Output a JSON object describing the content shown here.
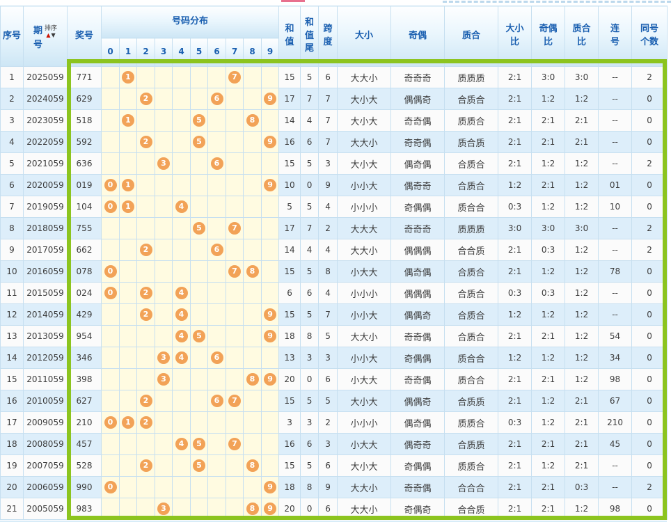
{
  "header": {
    "serial": "序号",
    "period": "期号",
    "sort_label": "排序",
    "prize": "奖号",
    "distribution": "号码分布",
    "digits": [
      "0",
      "1",
      "2",
      "3",
      "4",
      "5",
      "6",
      "7",
      "8",
      "9"
    ],
    "sum": "和值",
    "sum_tail": "和值尾",
    "span": "跨度",
    "size": "大小",
    "parity": "奇偶",
    "prime": "质合",
    "size_ratio": [
      "大小",
      "比"
    ],
    "parity_ratio": [
      "奇偶",
      "比"
    ],
    "prime_ratio": [
      "质合",
      "比"
    ],
    "consecutive": [
      "连",
      "号"
    ],
    "same_count": [
      "同号",
      "个数"
    ]
  },
  "icons": {
    "sort_up": "▲",
    "sort_down": "▼"
  },
  "colors": {
    "accent_green": "#8cc41f",
    "ball_orange": "#f2a257",
    "header_blue": "#1a5fb0",
    "row_alt_blue": "#ddeefa",
    "dist_yellow": "#fffbe1",
    "grid_blue": "#c6dff0",
    "sort_up_red": "#cc1100",
    "sort_down_dark": "#3a3a3a"
  },
  "rows": [
    {
      "serial": "1",
      "period": "2025059",
      "prize": "771",
      "balls": [
        1,
        7
      ],
      "sum": "15",
      "tail": "5",
      "span": "6",
      "size": "大大小",
      "parity": "奇奇奇",
      "prime": "质质质",
      "size_ratio": "2:1",
      "parity_ratio": "3:0",
      "prime_ratio": "3:0",
      "consecutive": "--",
      "same_count": "2"
    },
    {
      "serial": "2",
      "period": "2024059",
      "prize": "629",
      "balls": [
        2,
        6,
        9
      ],
      "sum": "17",
      "tail": "7",
      "span": "7",
      "size": "大小大",
      "parity": "偶偶奇",
      "prime": "合质合",
      "size_ratio": "2:1",
      "parity_ratio": "1:2",
      "prime_ratio": "1:2",
      "consecutive": "--",
      "same_count": "0"
    },
    {
      "serial": "3",
      "period": "2023059",
      "prize": "518",
      "balls": [
        1,
        5,
        8
      ],
      "sum": "14",
      "tail": "4",
      "span": "7",
      "size": "大小大",
      "parity": "奇奇偶",
      "prime": "质质合",
      "size_ratio": "2:1",
      "parity_ratio": "2:1",
      "prime_ratio": "2:1",
      "consecutive": "--",
      "same_count": "0"
    },
    {
      "serial": "4",
      "period": "2022059",
      "prize": "592",
      "balls": [
        2,
        5,
        9
      ],
      "sum": "16",
      "tail": "6",
      "span": "7",
      "size": "大大小",
      "parity": "奇奇偶",
      "prime": "质合质",
      "size_ratio": "2:1",
      "parity_ratio": "2:1",
      "prime_ratio": "2:1",
      "consecutive": "--",
      "same_count": "0"
    },
    {
      "serial": "5",
      "period": "2021059",
      "prize": "636",
      "balls": [
        3,
        6
      ],
      "sum": "15",
      "tail": "5",
      "span": "3",
      "size": "大小大",
      "parity": "偶奇偶",
      "prime": "合质合",
      "size_ratio": "2:1",
      "parity_ratio": "1:2",
      "prime_ratio": "1:2",
      "consecutive": "--",
      "same_count": "2"
    },
    {
      "serial": "6",
      "period": "2020059",
      "prize": "019",
      "balls": [
        0,
        1,
        9
      ],
      "sum": "10",
      "tail": "0",
      "span": "9",
      "size": "小小大",
      "parity": "偶奇奇",
      "prime": "合质合",
      "size_ratio": "1:2",
      "parity_ratio": "2:1",
      "prime_ratio": "1:2",
      "consecutive": "01",
      "same_count": "0"
    },
    {
      "serial": "7",
      "period": "2019059",
      "prize": "104",
      "balls": [
        0,
        1,
        4
      ],
      "sum": "5",
      "tail": "5",
      "span": "4",
      "size": "小小小",
      "parity": "奇偶偶",
      "prime": "质合合",
      "size_ratio": "0:3",
      "parity_ratio": "1:2",
      "prime_ratio": "1:2",
      "consecutive": "10",
      "same_count": "0"
    },
    {
      "serial": "8",
      "period": "2018059",
      "prize": "755",
      "balls": [
        5,
        7
      ],
      "sum": "17",
      "tail": "7",
      "span": "2",
      "size": "大大大",
      "parity": "奇奇奇",
      "prime": "质质质",
      "size_ratio": "3:0",
      "parity_ratio": "3:0",
      "prime_ratio": "3:0",
      "consecutive": "--",
      "same_count": "2"
    },
    {
      "serial": "9",
      "period": "2017059",
      "prize": "662",
      "balls": [
        2,
        6
      ],
      "sum": "14",
      "tail": "4",
      "span": "4",
      "size": "大大小",
      "parity": "偶偶偶",
      "prime": "合合质",
      "size_ratio": "2:1",
      "parity_ratio": "0:3",
      "prime_ratio": "1:2",
      "consecutive": "--",
      "same_count": "2"
    },
    {
      "serial": "10",
      "period": "2016059",
      "prize": "078",
      "balls": [
        0,
        7,
        8
      ],
      "sum": "15",
      "tail": "5",
      "span": "8",
      "size": "小大大",
      "parity": "偶奇偶",
      "prime": "合质合",
      "size_ratio": "2:1",
      "parity_ratio": "1:2",
      "prime_ratio": "1:2",
      "consecutive": "78",
      "same_count": "0"
    },
    {
      "serial": "11",
      "period": "2015059",
      "prize": "024",
      "balls": [
        0,
        2,
        4
      ],
      "sum": "6",
      "tail": "6",
      "span": "4",
      "size": "小小小",
      "parity": "偶偶偶",
      "prime": "合质合",
      "size_ratio": "0:3",
      "parity_ratio": "0:3",
      "prime_ratio": "1:2",
      "consecutive": "--",
      "same_count": "0"
    },
    {
      "serial": "12",
      "period": "2014059",
      "prize": "429",
      "balls": [
        2,
        4,
        9
      ],
      "sum": "15",
      "tail": "5",
      "span": "7",
      "size": "小小大",
      "parity": "偶偶奇",
      "prime": "合质合",
      "size_ratio": "1:2",
      "parity_ratio": "1:2",
      "prime_ratio": "1:2",
      "consecutive": "--",
      "same_count": "0"
    },
    {
      "serial": "13",
      "period": "2013059",
      "prize": "954",
      "balls": [
        4,
        5,
        9
      ],
      "sum": "18",
      "tail": "8",
      "span": "5",
      "size": "大大小",
      "parity": "奇奇偶",
      "prime": "合质合",
      "size_ratio": "2:1",
      "parity_ratio": "2:1",
      "prime_ratio": "1:2",
      "consecutive": "54",
      "same_count": "0"
    },
    {
      "serial": "14",
      "period": "2012059",
      "prize": "346",
      "balls": [
        3,
        4,
        6
      ],
      "sum": "13",
      "tail": "3",
      "span": "3",
      "size": "小小大",
      "parity": "奇偶偶",
      "prime": "质合合",
      "size_ratio": "1:2",
      "parity_ratio": "1:2",
      "prime_ratio": "1:2",
      "consecutive": "34",
      "same_count": "0"
    },
    {
      "serial": "15",
      "period": "2011059",
      "prize": "398",
      "balls": [
        3,
        8,
        9
      ],
      "sum": "20",
      "tail": "0",
      "span": "6",
      "size": "小大大",
      "parity": "奇奇偶",
      "prime": "质合合",
      "size_ratio": "2:1",
      "parity_ratio": "2:1",
      "prime_ratio": "1:2",
      "consecutive": "98",
      "same_count": "0"
    },
    {
      "serial": "16",
      "period": "2010059",
      "prize": "627",
      "balls": [
        2,
        6,
        7
      ],
      "sum": "15",
      "tail": "5",
      "span": "5",
      "size": "大小大",
      "parity": "偶偶奇",
      "prime": "合质质",
      "size_ratio": "2:1",
      "parity_ratio": "1:2",
      "prime_ratio": "2:1",
      "consecutive": "67",
      "same_count": "0"
    },
    {
      "serial": "17",
      "period": "2009059",
      "prize": "210",
      "balls": [
        0,
        1,
        2
      ],
      "sum": "3",
      "tail": "3",
      "span": "2",
      "size": "小小小",
      "parity": "偶奇偶",
      "prime": "质质合",
      "size_ratio": "0:3",
      "parity_ratio": "1:2",
      "prime_ratio": "2:1",
      "consecutive": "210",
      "same_count": "0"
    },
    {
      "serial": "18",
      "period": "2008059",
      "prize": "457",
      "balls": [
        4,
        5,
        7
      ],
      "sum": "16",
      "tail": "6",
      "span": "3",
      "size": "小大大",
      "parity": "偶奇奇",
      "prime": "合质质",
      "size_ratio": "2:1",
      "parity_ratio": "2:1",
      "prime_ratio": "2:1",
      "consecutive": "45",
      "same_count": "0"
    },
    {
      "serial": "19",
      "period": "2007059",
      "prize": "528",
      "balls": [
        2,
        5,
        8
      ],
      "sum": "15",
      "tail": "5",
      "span": "6",
      "size": "大小大",
      "parity": "奇偶偶",
      "prime": "质质合",
      "size_ratio": "2:1",
      "parity_ratio": "1:2",
      "prime_ratio": "2:1",
      "consecutive": "--",
      "same_count": "0"
    },
    {
      "serial": "20",
      "period": "2006059",
      "prize": "990",
      "balls": [
        0,
        9
      ],
      "sum": "18",
      "tail": "8",
      "span": "9",
      "size": "大大小",
      "parity": "奇奇偶",
      "prime": "合合合",
      "size_ratio": "2:1",
      "parity_ratio": "2:1",
      "prime_ratio": "0:3",
      "consecutive": "--",
      "same_count": "2"
    },
    {
      "serial": "21",
      "period": "2005059",
      "prize": "983",
      "balls": [
        3,
        8,
        9
      ],
      "sum": "20",
      "tail": "0",
      "span": "6",
      "size": "大大小",
      "parity": "奇偶奇",
      "prime": "合合质",
      "size_ratio": "2:1",
      "parity_ratio": "2:1",
      "prime_ratio": "1:2",
      "consecutive": "98",
      "same_count": "0"
    }
  ]
}
